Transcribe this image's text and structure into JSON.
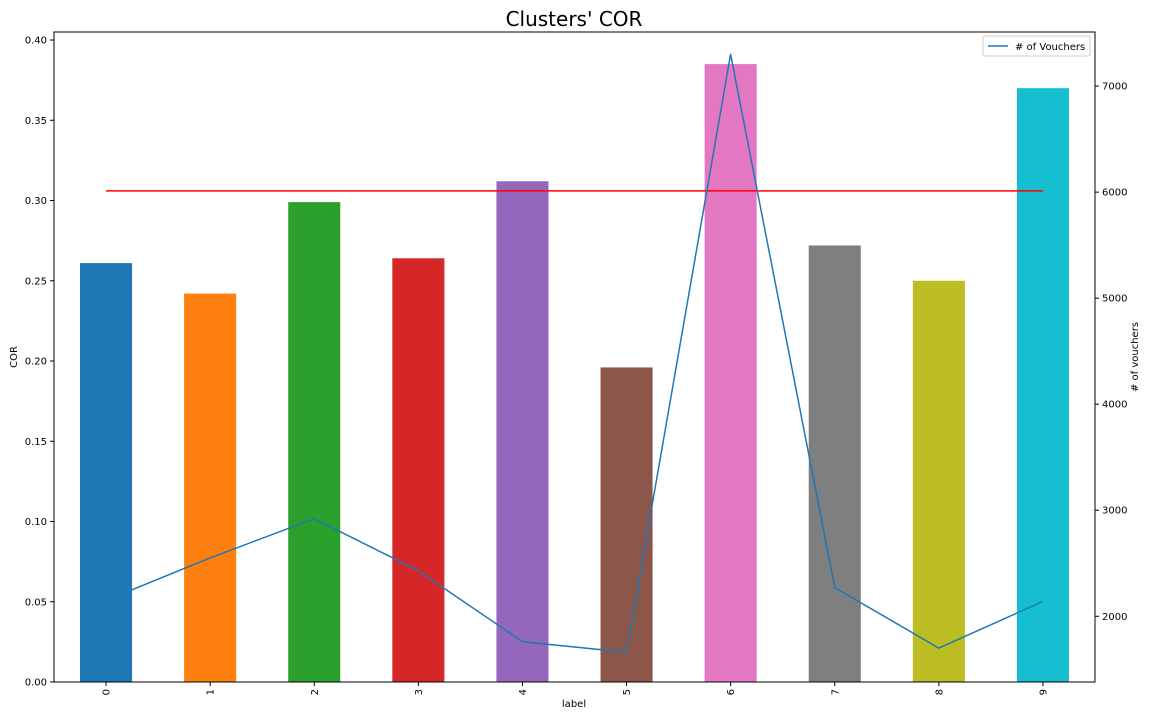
{
  "chart_data": {
    "type": "bar",
    "title": "Clusters' COR",
    "xlabel": "label",
    "ylabel": "COR",
    "ylabel_right": "# of vouchers",
    "categories": [
      "0",
      "1",
      "2",
      "3",
      "4",
      "5",
      "6",
      "7",
      "8",
      "9"
    ],
    "values": [
      0.261,
      0.242,
      0.299,
      0.264,
      0.312,
      0.196,
      0.385,
      0.272,
      0.25,
      0.37
    ],
    "bar_colors": [
      "#1f77b4",
      "#ff7f0e",
      "#2ca02c",
      "#d62728",
      "#9467bd",
      "#8c564b",
      "#e377c2",
      "#7f7f7f",
      "#bcbd22",
      "#17becf"
    ],
    "ylim": [
      0,
      0.405
    ],
    "yticks": [
      0.0,
      0.05,
      0.1,
      0.15,
      0.2,
      0.25,
      0.3,
      0.35,
      0.4
    ],
    "ytick_labels": [
      "0.00",
      "0.05",
      "0.10",
      "0.15",
      "0.20",
      "0.25",
      "0.30",
      "0.35",
      "0.40"
    ],
    "reference_line": {
      "value": 0.306,
      "color": "#ff0000",
      "from_category": "0",
      "to_category": "9"
    },
    "secondary_series": {
      "name": "# of Vouchers",
      "type": "line",
      "color": "#1f77b4",
      "values": [
        2150,
        2550,
        2920,
        2430,
        1760,
        1660,
        7300,
        2270,
        1700,
        2140
      ]
    },
    "ylim_right": [
      1380,
      7510
    ],
    "yticks_right": [
      2000,
      3000,
      4000,
      5000,
      6000,
      7000
    ],
    "ytick_labels_right": [
      "2000",
      "3000",
      "4000",
      "5000",
      "6000",
      "7000"
    ],
    "legend": {
      "entries": [
        "# of Vouchers"
      ],
      "placement": "upper-right"
    },
    "grid": false
  }
}
